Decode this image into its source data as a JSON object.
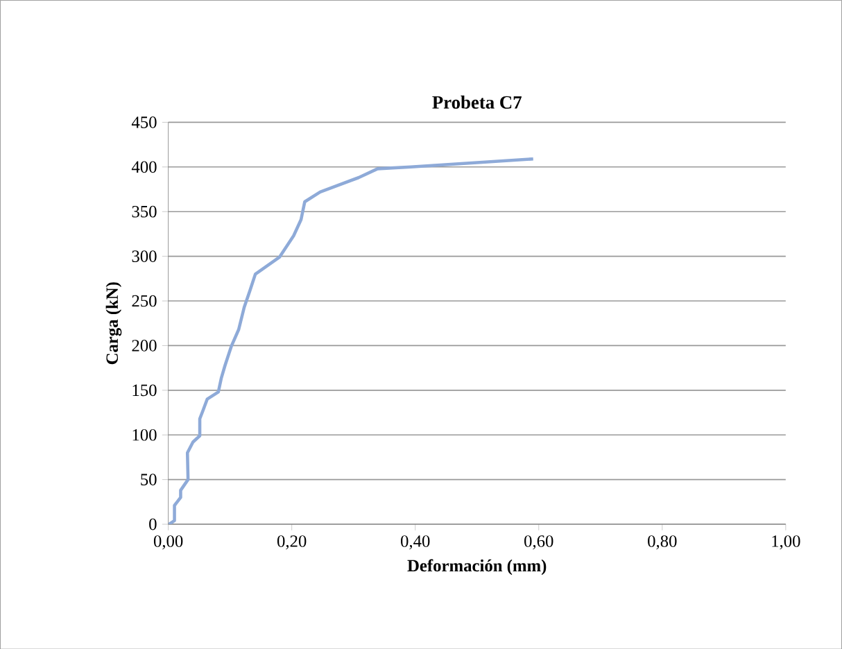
{
  "chart_data": {
    "type": "line",
    "title": "Probeta C7",
    "xlabel": "Deformación (mm)",
    "ylabel": "Carga (kN)",
    "xlim": [
      0,
      1
    ],
    "xticks": [
      {
        "value": 0,
        "label": "0,00"
      },
      {
        "value": 0.2,
        "label": "0,20"
      },
      {
        "value": 0.4,
        "label": "0,40"
      },
      {
        "value": 0.6,
        "label": "0,60"
      },
      {
        "value": 0.8,
        "label": "0,80"
      },
      {
        "value": 1,
        "label": "1,00"
      }
    ],
    "ylim": [
      0,
      450
    ],
    "yticks": [
      0,
      50,
      100,
      150,
      200,
      250,
      300,
      350,
      400,
      450
    ],
    "grid": "y",
    "series": [
      {
        "color": "#8eaad8",
        "x": [
          0.001,
          0.01,
          0.01,
          0.02,
          0.02,
          0.032,
          0.031,
          0.04,
          0.051,
          0.051,
          0.056,
          0.063,
          0.081,
          0.086,
          0.092,
          0.102,
          0.114,
          0.123,
          0.132,
          0.141,
          0.18,
          0.203,
          0.215,
          0.221,
          0.246,
          0.308,
          0.339,
          0.393,
          0.591
        ],
        "values": [
          0,
          4,
          21,
          30,
          38,
          50,
          80,
          92,
          99,
          118,
          127,
          140,
          148,
          164,
          178,
          199,
          218,
          243,
          261,
          280,
          299,
          323,
          341,
          361,
          372,
          388,
          398,
          400,
          409
        ]
      }
    ]
  }
}
